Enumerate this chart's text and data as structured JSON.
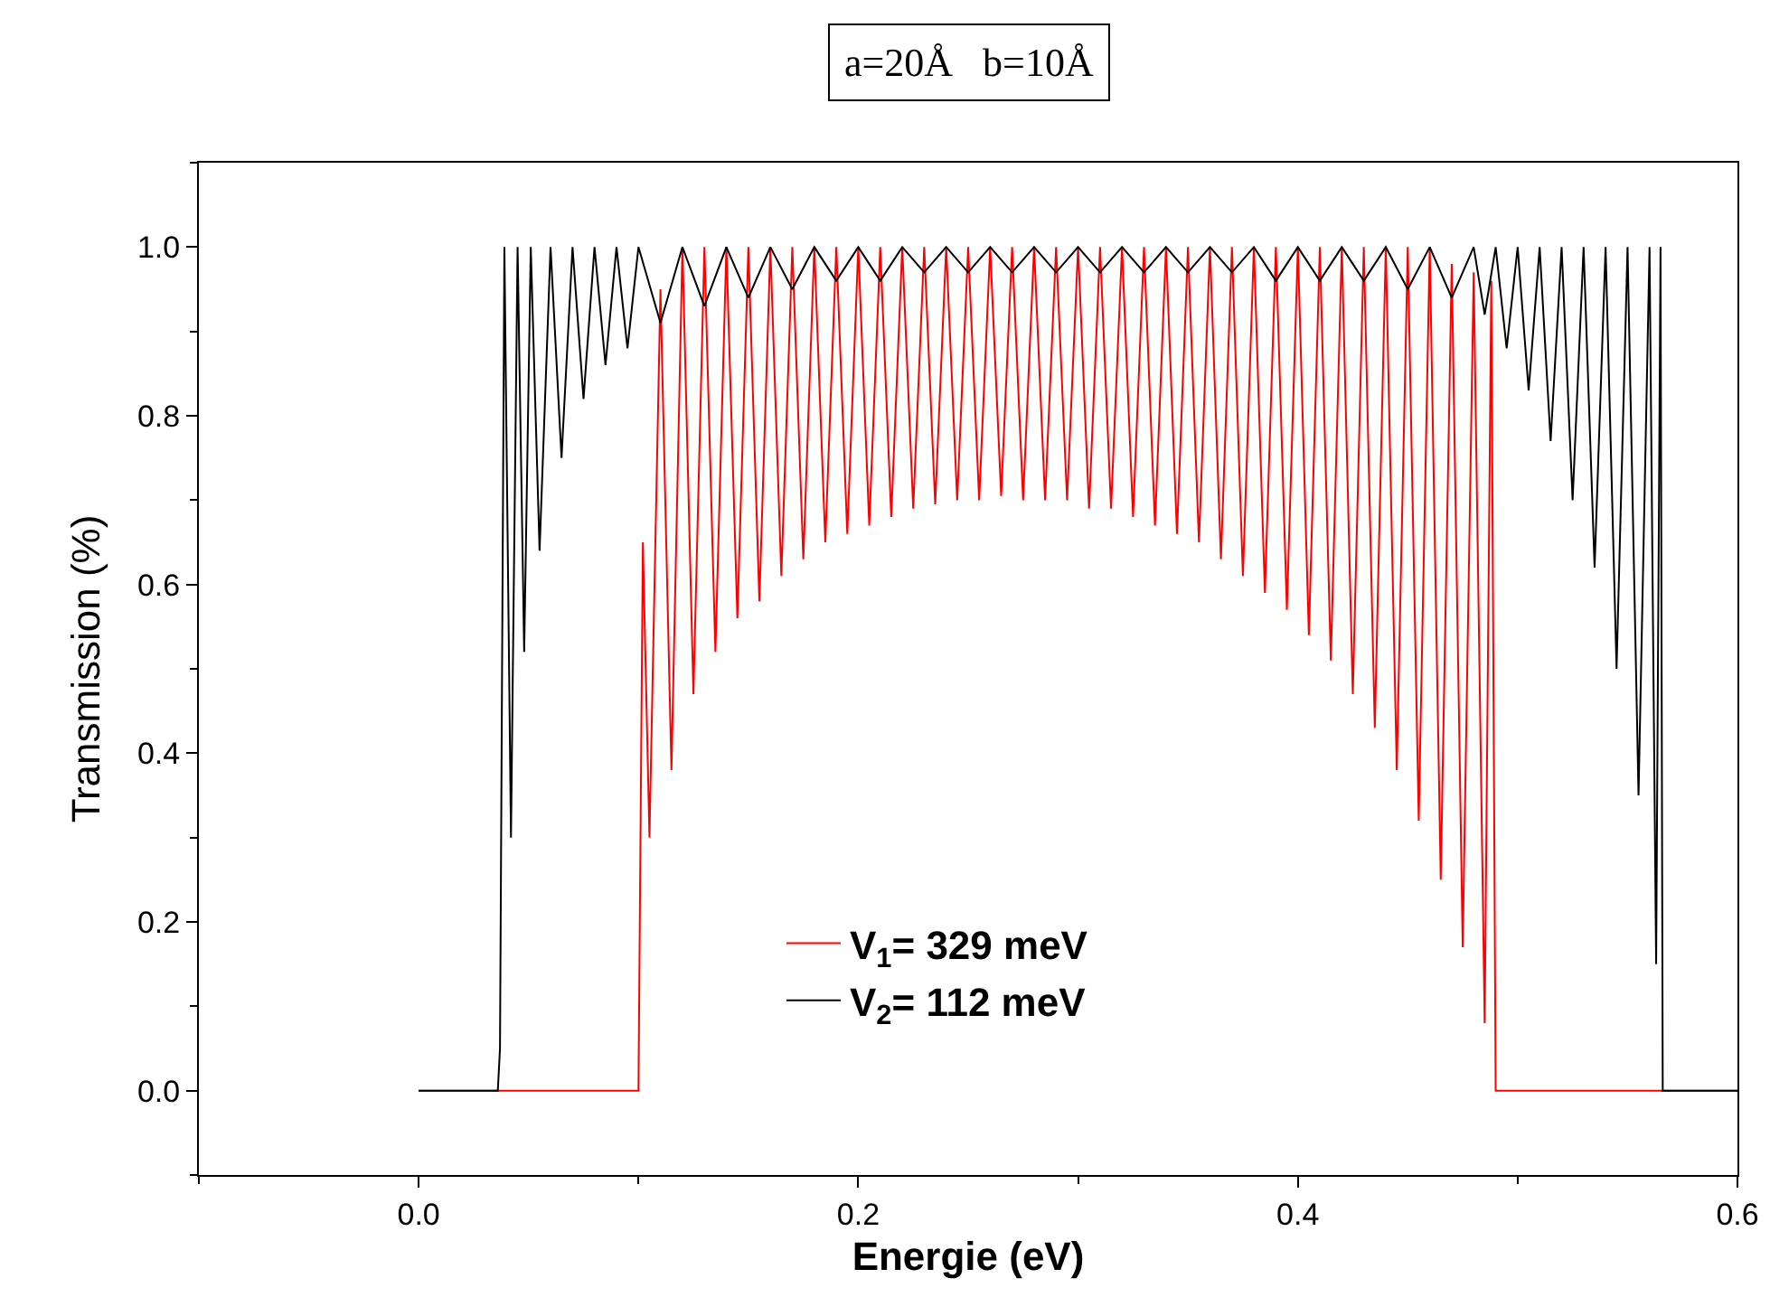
{
  "chart_data": {
    "type": "line",
    "title": "a=20Å   b=10Å",
    "xlabel": "Energie (eV)",
    "ylabel": "Transmission (%)",
    "xlim": [
      -0.1,
      0.6
    ],
    "xticks": [
      {
        "value": 0,
        "label": "0.0"
      },
      {
        "value": 0.2,
        "label": "0.2"
      },
      {
        "value": 0.4,
        "label": "0.4"
      },
      {
        "value": 0.6,
        "label": "0.6"
      }
    ],
    "ylim": [
      -0.1,
      1.1
    ],
    "yticks": [
      {
        "value": 0,
        "label": "0.0"
      },
      {
        "value": 0.2,
        "label": "0.2"
      },
      {
        "value": 0.4,
        "label": "0.4"
      },
      {
        "value": 0.6,
        "label": "0.6"
      },
      {
        "value": 0.8,
        "label": "0.8"
      },
      {
        "value": 1,
        "label": "1.0"
      }
    ],
    "grid": false,
    "legend": "bottom",
    "marker": "none",
    "line_style": "solid",
    "series": [
      {
        "name": "V$_{1}$= 329 meV",
        "color": "#ff0000",
        "x": [
          0,
          0.1,
          0.102,
          0.105,
          0.11,
          0.115,
          0.12,
          0.125,
          0.13,
          0.135,
          0.14,
          0.145,
          0.15,
          0.155,
          0.16,
          0.165,
          0.17,
          0.175,
          0.18,
          0.185,
          0.19,
          0.195,
          0.2,
          0.205,
          0.21,
          0.215,
          0.22,
          0.225,
          0.23,
          0.235,
          0.24,
          0.245,
          0.25,
          0.255,
          0.26,
          0.265,
          0.27,
          0.275,
          0.28,
          0.285,
          0.29,
          0.295,
          0.3,
          0.305,
          0.31,
          0.315,
          0.32,
          0.325,
          0.33,
          0.335,
          0.34,
          0.345,
          0.35,
          0.355,
          0.36,
          0.365,
          0.37,
          0.375,
          0.38,
          0.385,
          0.39,
          0.395,
          0.4,
          0.405,
          0.41,
          0.415,
          0.42,
          0.425,
          0.43,
          0.435,
          0.44,
          0.445,
          0.45,
          0.455,
          0.46,
          0.465,
          0.47,
          0.475,
          0.48,
          0.485,
          0.488,
          0.49,
          0.6
        ],
        "values": [
          0,
          0,
          0.65,
          0.3,
          0.95,
          0.38,
          1,
          0.47,
          1,
          0.52,
          1,
          0.56,
          1,
          0.58,
          1,
          0.61,
          1,
          0.63,
          1,
          0.65,
          1,
          0.66,
          1,
          0.67,
          1,
          0.68,
          1,
          0.69,
          1,
          0.695,
          1,
          0.7,
          1,
          0.7,
          1,
          0.705,
          1,
          0.7,
          1,
          0.7,
          1,
          0.7,
          1,
          0.69,
          1,
          0.69,
          1,
          0.68,
          1,
          0.67,
          1,
          0.66,
          1,
          0.65,
          1,
          0.63,
          1,
          0.61,
          1,
          0.59,
          1,
          0.57,
          1,
          0.54,
          1,
          0.51,
          1,
          0.47,
          1,
          0.43,
          1,
          0.38,
          1,
          0.32,
          1,
          0.25,
          0.98,
          0.17,
          0.97,
          0.08,
          0.96,
          0,
          0
        ]
      },
      {
        "name": "V$_{2}$= 112 meV",
        "color": "#000000",
        "x": [
          0,
          0.036,
          0.037,
          0.039,
          0.042,
          0.045,
          0.048,
          0.051,
          0.055,
          0.06,
          0.065,
          0.07,
          0.075,
          0.08,
          0.085,
          0.09,
          0.095,
          0.1,
          0.11,
          0.12,
          0.13,
          0.14,
          0.15,
          0.16,
          0.17,
          0.18,
          0.19,
          0.2,
          0.21,
          0.22,
          0.23,
          0.24,
          0.25,
          0.26,
          0.27,
          0.28,
          0.29,
          0.3,
          0.31,
          0.32,
          0.33,
          0.34,
          0.35,
          0.36,
          0.37,
          0.38,
          0.39,
          0.4,
          0.41,
          0.42,
          0.43,
          0.44,
          0.45,
          0.46,
          0.47,
          0.48,
          0.485,
          0.49,
          0.495,
          0.5,
          0.505,
          0.51,
          0.515,
          0.52,
          0.525,
          0.53,
          0.535,
          0.54,
          0.545,
          0.55,
          0.555,
          0.56,
          0.563,
          0.565,
          0.566,
          0.6
        ],
        "values": [
          0,
          0,
          0.05,
          1,
          0.3,
          1,
          0.52,
          1,
          0.64,
          1,
          0.75,
          1,
          0.82,
          1,
          0.86,
          1,
          0.88,
          1,
          0.91,
          1,
          0.93,
          1,
          0.94,
          1,
          0.95,
          1,
          0.96,
          1,
          0.96,
          1,
          0.97,
          1,
          0.97,
          1,
          0.97,
          1,
          0.97,
          1,
          0.97,
          1,
          0.97,
          1,
          0.97,
          1,
          0.97,
          1,
          0.96,
          1,
          0.96,
          1,
          0.96,
          1,
          0.95,
          1,
          0.94,
          1,
          0.92,
          1,
          0.88,
          1,
          0.83,
          1,
          0.77,
          1,
          0.7,
          1,
          0.62,
          1,
          0.5,
          1,
          0.35,
          1,
          0.15,
          1,
          0,
          0
        ]
      }
    ]
  }
}
